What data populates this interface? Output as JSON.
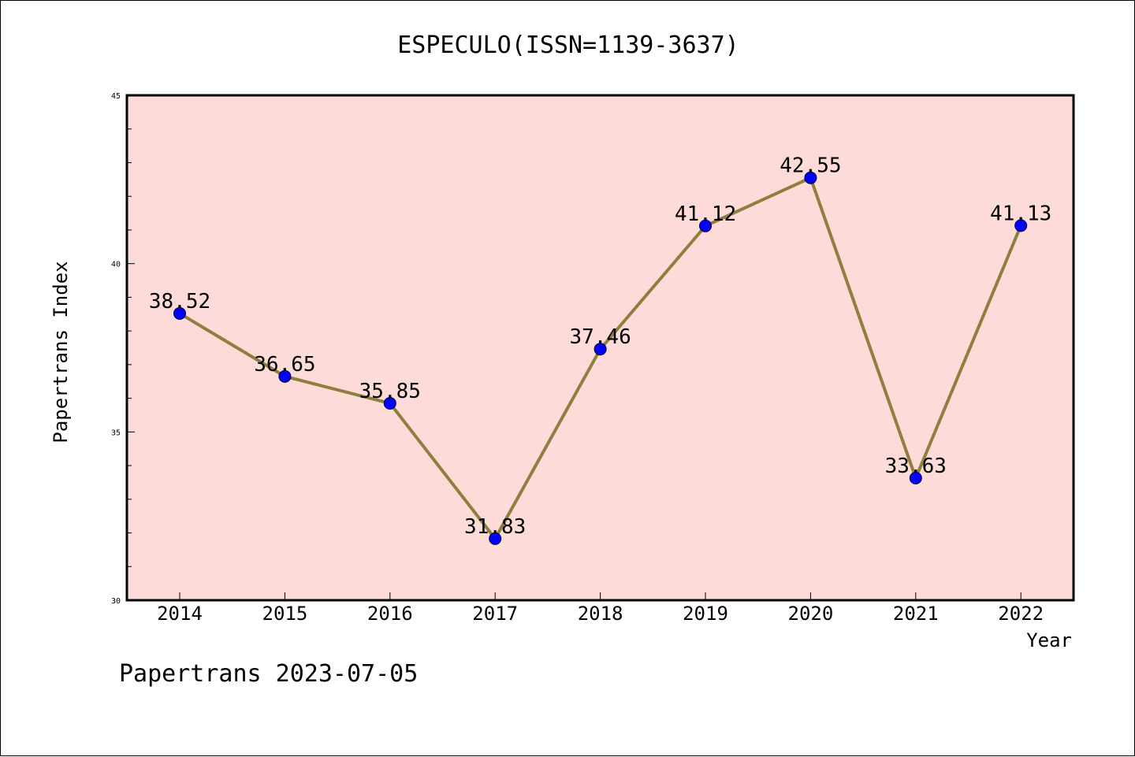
{
  "chart_data": {
    "type": "line",
    "title": "ESPECULO(ISSN=1139-3637)",
    "xlabel": "Year",
    "ylabel": "Papertrans Index",
    "categories": [
      "2014",
      "2015",
      "2016",
      "2017",
      "2018",
      "2019",
      "2020",
      "2021",
      "2022"
    ],
    "series": [
      {
        "values": [
          38.52,
          36.65,
          35.85,
          31.83,
          37.46,
          41.12,
          42.55,
          33.63,
          41.13
        ],
        "labels": [
          "38.52",
          "36.65",
          "35.85",
          "31.83",
          "37.46",
          "41.12",
          "42.55",
          "33.63",
          "41.13"
        ]
      }
    ],
    "ylim": [
      30,
      45
    ],
    "yticks": [
      "30",
      "35",
      "40",
      "45"
    ],
    "grid": false,
    "colors": {
      "plot_background": "#fddbd8",
      "line": "#8e7f3e",
      "marker": "#0000ff"
    }
  },
  "footer": "Papertrans 2023-07-05"
}
